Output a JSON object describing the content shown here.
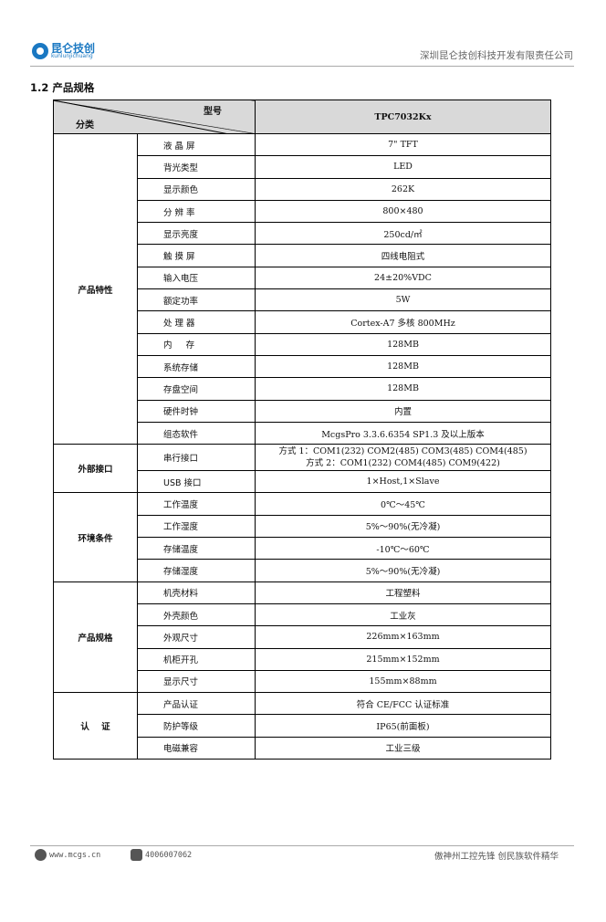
{
  "header": {
    "logo_cn": "昆仑技创",
    "logo_en": "kunlunjichuang",
    "company": "深圳昆仑技创科技开发有限责任公司"
  },
  "section_title": "1.2  产品规格",
  "table": {
    "header_model_label": "型号",
    "header_category_label": "分类",
    "model": "TPC7032Kx",
    "groups": [
      {
        "name": "产品特性",
        "rows": [
          [
            "液 晶 屏",
            "7\" TFT"
          ],
          [
            "背光类型",
            "LED"
          ],
          [
            "显示颜色",
            "262K"
          ],
          [
            "分 辨 率",
            "800×480"
          ],
          [
            "显示亮度",
            "250cd/㎡"
          ],
          [
            "触 摸 屏",
            "四线电阻式"
          ],
          [
            "输入电压",
            "24±20%VDC"
          ],
          [
            "额定功率",
            "5W"
          ],
          [
            "处 理 器",
            "Cortex-A7 多核 800MHz"
          ],
          [
            "内     存",
            "128MB"
          ],
          [
            "系统存储",
            "128MB"
          ],
          [
            "存盘空间",
            "128MB"
          ],
          [
            "硬件时钟",
            "内置"
          ],
          [
            "组态软件",
            "McgsPro 3.3.6.6354 SP1.3 及以上版本"
          ]
        ]
      },
      {
        "name": "外部接口",
        "rows": [
          [
            "串行接口",
            "方式 1：COM1(232) COM2(485) COM3(485) COM4(485)",
            "方式 2：COM1(232) COM4(485) COM9(422)"
          ],
          [
            "USB 接口",
            "1×Host,1×Slave"
          ]
        ]
      },
      {
        "name": "环境条件",
        "rows": [
          [
            "工作温度",
            "0℃～45℃"
          ],
          [
            "工作湿度",
            "5%～90%(无冷凝)"
          ],
          [
            "存储温度",
            "-10℃～60℃"
          ],
          [
            "存储湿度",
            "5%～90%(无冷凝)"
          ]
        ]
      },
      {
        "name": "产品规格",
        "rows": [
          [
            "机壳材料",
            "工程塑料"
          ],
          [
            "外壳颜色",
            "工业灰"
          ],
          [
            "外观尺寸",
            "226mm×163mm"
          ],
          [
            "机柜开孔",
            "215mm×152mm"
          ],
          [
            "显示尺寸",
            "155mm×88mm"
          ]
        ]
      },
      {
        "name": "认    证",
        "rows": [
          [
            "产品认证",
            "符合 CE/FCC 认证标准"
          ],
          [
            "防护等级",
            "IP65(前面板)"
          ],
          [
            "电磁兼容",
            "工业三级"
          ]
        ]
      }
    ]
  },
  "footer": {
    "website": "www.mcgs.cn",
    "phone": "4006007062",
    "slogan": "傲神州工控先锋  创民族软件精华"
  }
}
